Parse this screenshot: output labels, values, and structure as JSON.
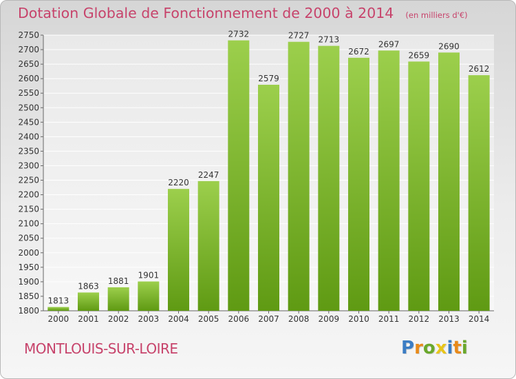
{
  "header": {
    "title": "Dotation Globale de Fonctionnement de 2000 à 2014",
    "unit": "(en milliers d'€)"
  },
  "footer": {
    "town": "MONTLOUIS-SUR-LOIRE",
    "brand": "Proxiti"
  },
  "colors": {
    "title": "#c7436b",
    "bar_top": "#9ccf4c",
    "bar_bottom": "#5f9a13",
    "brand_letters": [
      "#3b7dc4",
      "#e88a1a",
      "#6aa82b",
      "#e8c51a",
      "#3b7dc4",
      "#e88a1a",
      "#6aa82b"
    ]
  },
  "chart_data": {
    "type": "bar",
    "categories": [
      "2000",
      "2001",
      "2002",
      "2003",
      "2004",
      "2005",
      "2006",
      "2007",
      "2008",
      "2009",
      "2010",
      "2011",
      "2012",
      "2013",
      "2014"
    ],
    "values": [
      1813,
      1863,
      1881,
      1901,
      2220,
      2247,
      2732,
      2579,
      2727,
      2713,
      2672,
      2697,
      2659,
      2690,
      2612
    ],
    "ylim": [
      1800,
      2750
    ],
    "yticks": [
      1800,
      1850,
      1900,
      1950,
      2000,
      2050,
      2100,
      2150,
      2200,
      2250,
      2300,
      2350,
      2400,
      2450,
      2500,
      2550,
      2600,
      2650,
      2700,
      2750
    ],
    "grid": true,
    "data_labels": true
  }
}
